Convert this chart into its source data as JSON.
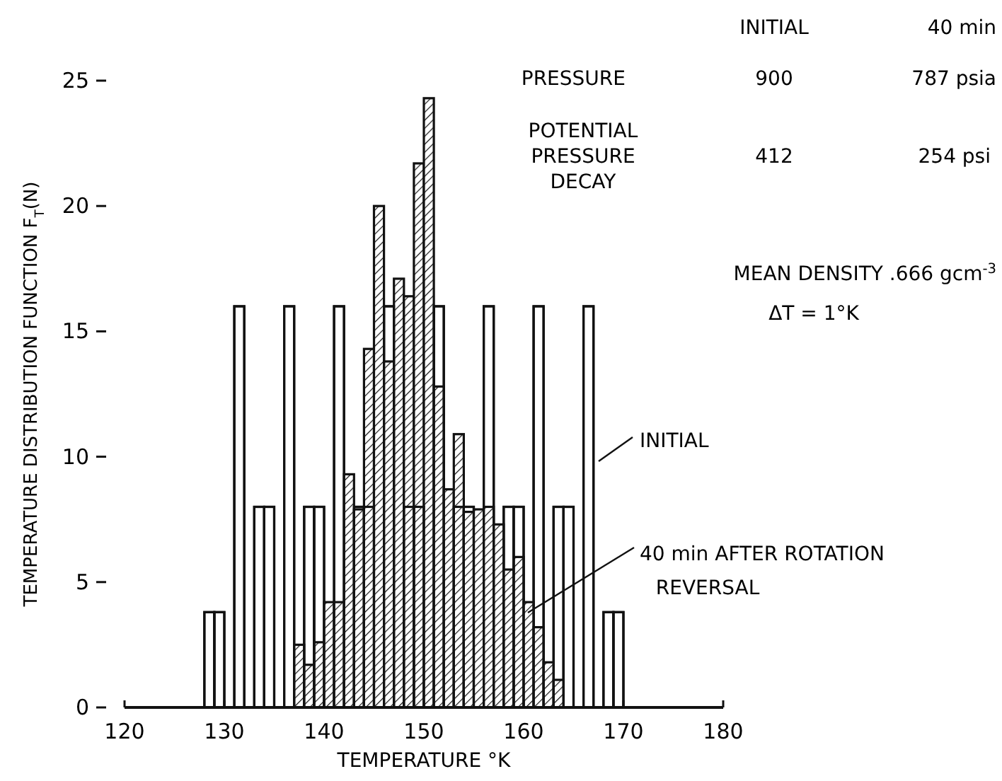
{
  "chart_data": {
    "type": "histogram",
    "xlabel": "TEMPERATURE °K",
    "ylabel": "TEMPERATURE DISTRIBUTION FUNCTION F$_{T}$(N)",
    "bins": [
      128,
      129,
      130,
      131,
      132,
      133,
      134,
      135,
      136,
      137,
      138,
      139,
      140,
      141,
      142,
      143,
      144,
      145,
      146,
      147,
      148,
      149,
      150,
      151,
      152,
      153,
      154,
      155,
      156,
      157,
      158,
      159,
      160,
      161,
      162,
      163,
      164,
      165,
      166,
      167,
      168,
      169,
      170
    ],
    "series": [
      {
        "name": "INITIAL",
        "color": "#ffffff",
        "values": [
          3.8,
          3.8,
          null,
          16,
          null,
          8,
          8,
          null,
          16,
          null,
          8,
          8,
          null,
          16,
          null,
          8,
          8,
          null,
          16,
          null,
          8,
          8,
          null,
          16,
          null,
          8,
          8,
          null,
          16,
          null,
          8,
          8,
          null,
          16,
          null,
          8,
          8,
          null,
          16,
          null,
          3.8,
          3.8
        ]
      },
      {
        "name": "40 min AFTER ROTATION REVERSAL",
        "color": "#111111",
        "values": [
          null,
          null,
          null,
          null,
          null,
          null,
          null,
          null,
          null,
          2.5,
          1.7,
          2.6,
          4.2,
          4.2,
          9.3,
          7.9,
          14.3,
          20,
          13.8,
          17.1,
          16.4,
          21.7,
          24.3,
          12.8,
          8.7,
          10.9,
          7.8,
          7.9,
          8,
          7.3,
          5.5,
          6,
          4.2,
          3.2,
          1.8,
          1.1,
          null,
          null,
          null,
          null,
          null,
          null
        ]
      }
    ],
    "xlim": [
      120,
      180
    ],
    "xticks": [
      120,
      130,
      140,
      150,
      160,
      170,
      180
    ],
    "ylim": [
      0,
      25
    ],
    "yticks": [
      0,
      5,
      10,
      15,
      20,
      25
    ],
    "annotations": [
      "INITIAL",
      "40 min",
      "PRESSURE",
      "900",
      "787 psia",
      "POTENTIAL\nPRESSURE\nDECAY",
      "412",
      "254 psi",
      "MEAN DENSITY .666 gcm$^{-3}$",
      "ΔT = 1°K"
    ]
  }
}
